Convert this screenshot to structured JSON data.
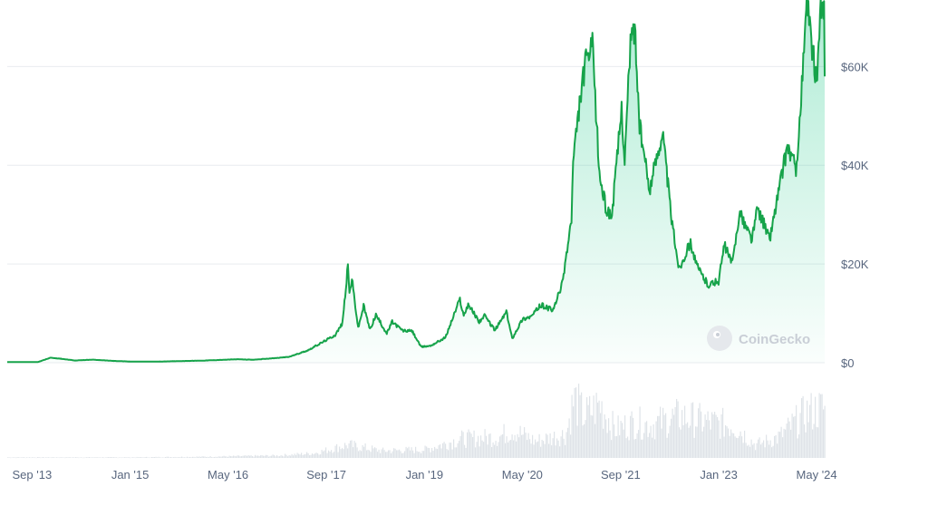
{
  "watermark": {
    "text": "CoinGecko",
    "icon": "gecko-logo-icon"
  },
  "colors": {
    "line": "#16a34a",
    "fill_top": "#16c784",
    "grid": "#e9ecef",
    "axis_text": "#58667e",
    "volume": "#dfe3e8",
    "watermark": "#c9ced6"
  },
  "chart_data": {
    "type": "area",
    "title": "",
    "xlabel": "",
    "ylabel": "",
    "x_ticks": [
      "Sep '13",
      "Jan '15",
      "May '16",
      "Sep '17",
      "Jan '19",
      "May '20",
      "Sep '21",
      "Jan '23",
      "May '24"
    ],
    "y_ticks": [
      "$0",
      "$20K",
      "$40K",
      "$60K"
    ],
    "ylim": [
      0,
      72000
    ],
    "xlim": [
      "2013-05-01",
      "2024-06-10"
    ],
    "grid": true,
    "legend": "none",
    "price_series": {
      "name": "",
      "points": [
        [
          "2013-05-01",
          120
        ],
        [
          "2013-10-01",
          150
        ],
        [
          "2013-12-01",
          1000
        ],
        [
          "2014-01-15",
          850
        ],
        [
          "2014-04-01",
          450
        ],
        [
          "2014-07-01",
          620
        ],
        [
          "2014-10-01",
          380
        ],
        [
          "2015-01-15",
          220
        ],
        [
          "2015-06-01",
          240
        ],
        [
          "2015-11-01",
          380
        ],
        [
          "2016-01-01",
          430
        ],
        [
          "2016-06-15",
          700
        ],
        [
          "2016-09-01",
          600
        ],
        [
          "2016-12-31",
          960
        ],
        [
          "2017-03-01",
          1200
        ],
        [
          "2017-06-01",
          2500
        ],
        [
          "2017-08-15",
          4200
        ],
        [
          "2017-10-15",
          5600
        ],
        [
          "2017-11-20",
          8000
        ],
        [
          "2017-12-17",
          19500
        ],
        [
          "2017-12-25",
          14000
        ],
        [
          "2018-01-06",
          17000
        ],
        [
          "2018-02-06",
          7000
        ],
        [
          "2018-03-05",
          11500
        ],
        [
          "2018-04-06",
          6700
        ],
        [
          "2018-05-05",
          9700
        ],
        [
          "2018-06-28",
          5900
        ],
        [
          "2018-07-25",
          8300
        ],
        [
          "2018-09-15",
          6500
        ],
        [
          "2018-11-01",
          6400
        ],
        [
          "2018-12-15",
          3200
        ],
        [
          "2019-02-01",
          3450
        ],
        [
          "2019-04-15",
          5100
        ],
        [
          "2019-06-26",
          12900
        ],
        [
          "2019-07-15",
          9500
        ],
        [
          "2019-08-06",
          11900
        ],
        [
          "2019-09-30",
          8300
        ],
        [
          "2019-10-26",
          9500
        ],
        [
          "2019-12-17",
          6600
        ],
        [
          "2020-02-12",
          10300
        ],
        [
          "2020-03-12",
          4900
        ],
        [
          "2020-05-01",
          8800
        ],
        [
          "2020-06-15",
          9400
        ],
        [
          "2020-08-01",
          11700
        ],
        [
          "2020-10-01",
          10600
        ],
        [
          "2020-11-15",
          16000
        ],
        [
          "2020-12-31",
          29000
        ],
        [
          "2021-01-08",
          40500
        ],
        [
          "2021-02-20",
          56000
        ],
        [
          "2021-03-13",
          61000
        ],
        [
          "2021-04-14",
          64000
        ],
        [
          "2021-05-19",
          38000
        ],
        [
          "2021-06-22",
          31000
        ],
        [
          "2021-07-20",
          29800
        ],
        [
          "2021-09-06",
          51700
        ],
        [
          "2021-09-21",
          41000
        ],
        [
          "2021-10-20",
          65000
        ],
        [
          "2021-11-10",
          68000
        ],
        [
          "2021-12-04",
          48000
        ],
        [
          "2022-01-22",
          35000
        ],
        [
          "2022-03-28",
          47000
        ],
        [
          "2022-05-12",
          29000
        ],
        [
          "2022-06-18",
          19000
        ],
        [
          "2022-08-14",
          24400
        ],
        [
          "2022-09-15",
          19500
        ],
        [
          "2022-11-09",
          15800
        ],
        [
          "2022-12-31",
          16500
        ],
        [
          "2023-01-29",
          23800
        ],
        [
          "2023-03-10",
          20000
        ],
        [
          "2023-04-13",
          30400
        ],
        [
          "2023-06-15",
          25000
        ],
        [
          "2023-07-13",
          31400
        ],
        [
          "2023-09-11",
          25000
        ],
        [
          "2023-10-24",
          34500
        ],
        [
          "2023-12-08",
          44000
        ],
        [
          "2024-01-23",
          39000
        ],
        [
          "2024-03-14",
          73000
        ],
        [
          "2024-04-01",
          66000
        ],
        [
          "2024-05-01",
          57000
        ],
        [
          "2024-05-21",
          71000
        ],
        [
          "2024-06-07",
          71000
        ],
        [
          "2024-06-10",
          58000
        ]
      ]
    },
    "volume_series": {
      "name": "",
      "ylim": [
        0,
        100
      ],
      "points": [
        [
          "2013-05-01",
          1
        ],
        [
          "2015-01-01",
          1
        ],
        [
          "2016-01-01",
          2
        ],
        [
          "2017-01-01",
          4
        ],
        [
          "2017-07-01",
          8
        ],
        [
          "2017-12-15",
          22
        ],
        [
          "2018-06-01",
          12
        ],
        [
          "2019-01-01",
          14
        ],
        [
          "2019-07-01",
          32
        ],
        [
          "2020-01-01",
          35
        ],
        [
          "2020-03-12",
          48
        ],
        [
          "2020-07-01",
          28
        ],
        [
          "2020-12-01",
          40
        ],
        [
          "2021-01-11",
          100
        ],
        [
          "2021-03-01",
          70
        ],
        [
          "2021-05-19",
          90
        ],
        [
          "2021-08-01",
          48
        ],
        [
          "2021-11-10",
          60
        ],
        [
          "2022-01-22",
          55
        ],
        [
          "2022-06-18",
          70
        ],
        [
          "2022-11-09",
          60
        ],
        [
          "2023-03-15",
          55
        ],
        [
          "2023-07-01",
          22
        ],
        [
          "2023-10-24",
          35
        ],
        [
          "2024-03-05",
          75
        ],
        [
          "2024-06-10",
          85
        ]
      ]
    }
  }
}
